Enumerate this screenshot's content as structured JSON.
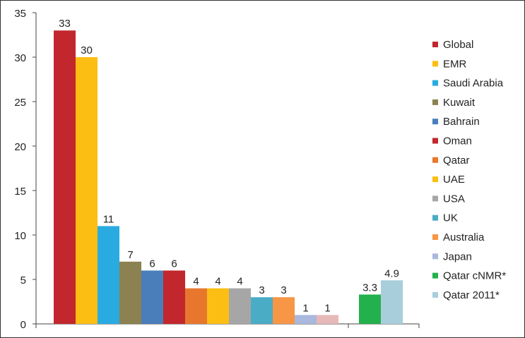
{
  "chart_data": {
    "type": "bar",
    "title": "",
    "xlabel": "",
    "ylabel": "",
    "ylim": [
      0,
      35
    ],
    "yticks": [
      0,
      5,
      10,
      15,
      20,
      25,
      30,
      35
    ],
    "ytick_labels": [
      "0",
      "5",
      "10",
      "15",
      "20",
      "25",
      "30",
      "35"
    ],
    "grid": false,
    "legend_position": "right",
    "bars": [
      {
        "name": "Global",
        "value": 33,
        "label": "33",
        "color": "#C1272D",
        "group": 0
      },
      {
        "name": "EMR",
        "value": 30,
        "label": "30",
        "color": "#FDBE13",
        "group": 0
      },
      {
        "name": "Saudi Arabia",
        "value": 11,
        "label": "11",
        "color": "#29ABE2",
        "group": 0
      },
      {
        "name": "Kuwait",
        "value": 7,
        "label": "7",
        "color": "#8C8150",
        "group": 0
      },
      {
        "name": "Bahrain",
        "value": 6,
        "label": "6",
        "color": "#4A7EBB",
        "group": 0
      },
      {
        "name": "Oman",
        "value": 6,
        "label": "6",
        "color": "#C1272D",
        "group": 0
      },
      {
        "name": "Qatar",
        "value": 4,
        "label": "4",
        "color": "#E8772E",
        "group": 0
      },
      {
        "name": "UAE",
        "value": 4,
        "label": "4",
        "color": "#FDBE13",
        "group": 0
      },
      {
        "name": "USA",
        "value": 4,
        "label": "4",
        "color": "#A6A6A6",
        "group": 0
      },
      {
        "name": "UK",
        "value": 3,
        "label": "3",
        "color": "#4BACC6",
        "group": 0
      },
      {
        "name": "Australia",
        "value": 3,
        "label": "3",
        "color": "#F79646",
        "group": 0
      },
      {
        "name": "Japan",
        "value": 1,
        "label": "1",
        "color": "#AAB8DD",
        "group": 0
      },
      {
        "name": "Qatar 2011",
        "value": 1,
        "label": "1",
        "color": "#E6B9B8",
        "group": 0
      },
      {
        "name": "Qatar cNMR*",
        "value": 3.3,
        "label": "3.3",
        "color": "#22B14C",
        "group": 1
      },
      {
        "name": "Qatar 2011*",
        "value": 4.9,
        "label": "4.9",
        "color": "#A8CEDC",
        "group": 1
      }
    ],
    "legend": [
      {
        "label": "Global",
        "color": "#C1272D"
      },
      {
        "label": "EMR",
        "color": "#FDBE13"
      },
      {
        "label": "Saudi Arabia",
        "color": "#29ABE2"
      },
      {
        "label": "Kuwait",
        "color": "#8C8150"
      },
      {
        "label": "Bahrain",
        "color": "#4A7EBB"
      },
      {
        "label": "Oman",
        "color": "#C1272D"
      },
      {
        "label": "Qatar",
        "color": "#E8772E"
      },
      {
        "label": "UAE",
        "color": "#FDBE13"
      },
      {
        "label": "USA",
        "color": "#A6A6A6"
      },
      {
        "label": "UK",
        "color": "#4BACC6"
      },
      {
        "label": "Australia",
        "color": "#F79646"
      },
      {
        "label": "Japan",
        "color": "#AAB8DD"
      },
      {
        "label": "Qatar cNMR*",
        "color": "#22B14C"
      },
      {
        "label": "Qatar 2011*",
        "color": "#A8CEDC"
      }
    ]
  }
}
